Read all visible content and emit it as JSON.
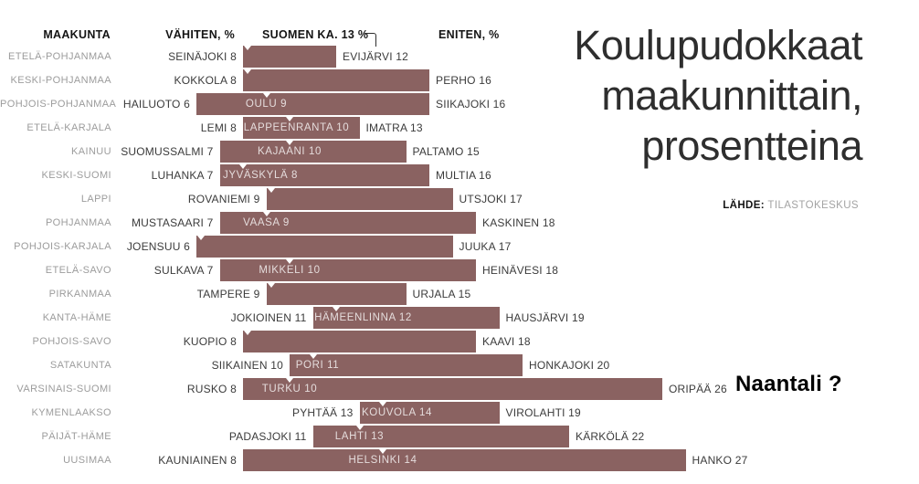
{
  "title_lines": [
    "Koulupudokkaat",
    "maakunnittain,",
    "prosentteina"
  ],
  "source": {
    "label": "LÄHDE:",
    "value": "TILASTOKESKUS"
  },
  "annotation": "Naantali ?",
  "header": {
    "region": "MAAKUNTA",
    "min": "VÄHITEN, %",
    "avg": "SUOMEN KA. 13 %",
    "max": "ENITEN, %"
  },
  "colors": {
    "bar": "#8a6261",
    "inside_label": "rgba(255,255,255,0.78)",
    "region_label": "#9c9c9c",
    "value_label": "#3b3b3b",
    "marker": "#ffffff"
  },
  "chart_data": {
    "type": "bar",
    "subtype": "horizontal-range-bars",
    "unit": "%",
    "national_average": 13,
    "axis_range": [
      6,
      27
    ],
    "legend": "bar spans minimum to maximum dropout % per region; notch/label marks main city",
    "rows": [
      {
        "region": "ETELÄ-POHJANMAA",
        "min": 8,
        "min_label": "SEINÄJOKI 8",
        "max": 12,
        "max_label": "EVIJÄRVI 12",
        "inside_label": null,
        "city": 8
      },
      {
        "region": "KESKI-POHJANMAA",
        "min": 8,
        "min_label": "KOKKOLA 8",
        "max": 16,
        "max_label": "PERHO 16",
        "inside_label": null,
        "city": 8
      },
      {
        "region": "POHJOIS-POHJANMAA",
        "min": 6,
        "min_label": "HAILUOTO 6",
        "max": 16,
        "max_label": "SIIKAJOKI 16",
        "inside_label": "OULU 9",
        "city": 9
      },
      {
        "region": "ETELÄ-KARJALA",
        "min": 8,
        "min_label": "LEMI 8",
        "max": 13,
        "max_label": "IMATRA 13",
        "inside_label": "LAPPEENRANTA 10",
        "city": 10
      },
      {
        "region": "KAINUU",
        "min": 7,
        "min_label": "SUOMUSSALMI 7",
        "max": 15,
        "max_label": "PALTAMO 15",
        "inside_label": "KAJAANI 10",
        "city": 10
      },
      {
        "region": "KESKI-SUOMI",
        "min": 7,
        "min_label": "LUHANKA 7",
        "max": 16,
        "max_label": "MULTIA 16",
        "inside_label": "JYVÄSKYLÄ 8",
        "city": 8
      },
      {
        "region": "LAPPI",
        "min": 9,
        "min_label": "ROVANIEMI 9",
        "max": 17,
        "max_label": "UTSJOKI 17",
        "inside_label": null,
        "city": 9
      },
      {
        "region": "POHJANMAA",
        "min": 7,
        "min_label": "MUSTASAARI 7",
        "max": 18,
        "max_label": "KASKINEN 18",
        "inside_label": "VAASA 9",
        "city": 9
      },
      {
        "region": "POHJOIS-KARJALA",
        "min": 6,
        "min_label": "JOENSUU 6",
        "max": 17,
        "max_label": "JUUKA 17",
        "inside_label": null,
        "city": 6
      },
      {
        "region": "ETELÄ-SAVO",
        "min": 7,
        "min_label": "SULKAVA 7",
        "max": 18,
        "max_label": "HEINÄVESI 18",
        "inside_label": "MIKKELI 10",
        "city": 10
      },
      {
        "region": "PIRKANMAA",
        "min": 9,
        "min_label": "TAMPERE 9",
        "max": 15,
        "max_label": "URJALA 15",
        "inside_label": null,
        "city": 9
      },
      {
        "region": "KANTA-HÄME",
        "min": 11,
        "min_label": "JOKIOINEN 11",
        "max": 19,
        "max_label": "HAUSJÄRVI 19",
        "inside_label": "HÄMEENLINNA 12",
        "city": 12
      },
      {
        "region": "POHJOIS-SAVO",
        "min": 8,
        "min_label": "KUOPIO 8",
        "max": 18,
        "max_label": "KAAVI 18",
        "inside_label": null,
        "city": 8
      },
      {
        "region": "SATAKUNTA",
        "min": 10,
        "min_label": "SIIKAINEN 10",
        "max": 20,
        "max_label": "HONKAJOKI 20",
        "inside_label": "PORI 11",
        "city": 11
      },
      {
        "region": "VARSINAIS-SUOMI",
        "min": 8,
        "min_label": "RUSKO 8",
        "max": 26,
        "max_label": "ORIPÄÄ 26",
        "inside_label": "TURKU 10",
        "city": 10
      },
      {
        "region": "KYMENLAAKSO",
        "min": 13,
        "min_label": "PYHTÄÄ 13",
        "max": 19,
        "max_label": "VIROLAHTI 19",
        "inside_label": "KOUVOLA 14",
        "city": 14
      },
      {
        "region": "PÄIJÄT-HÄME",
        "min": 11,
        "min_label": "PADASJOKI 11",
        "max": 22,
        "max_label": "KÄRKÖLÄ 22",
        "inside_label": "LAHTI 13",
        "city": 13
      },
      {
        "region": "UUSIMAA",
        "min": 8,
        "min_label": "KAUNIAINEN 8",
        "max": 27,
        "max_label": "HANKO 27",
        "inside_label": "HELSINKI 14",
        "city": 14
      }
    ]
  }
}
